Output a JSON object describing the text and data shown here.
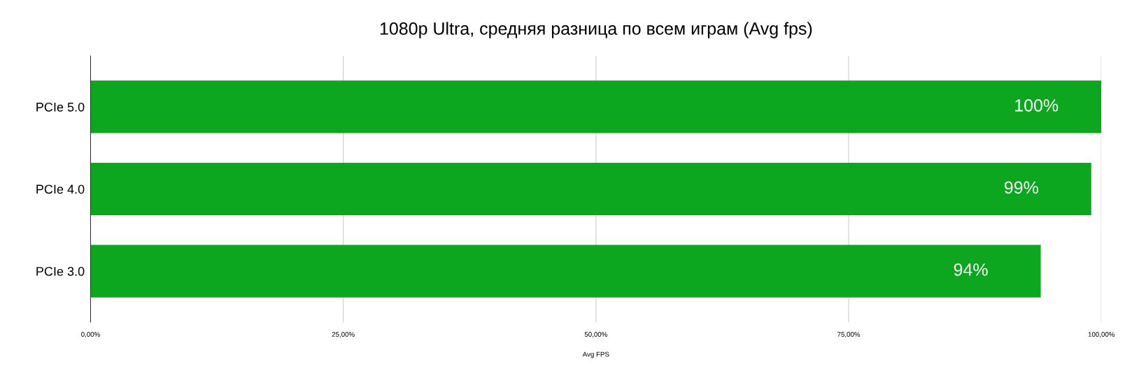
{
  "chart_data": {
    "type": "bar",
    "orientation": "horizontal",
    "title": "1080p Ultra, средняя разница по всем играм (Avg fps)",
    "xlabel": "Avg FPS",
    "categories": [
      "PCIe 5.0",
      "PCIe 4.0",
      "PCIe 3.0"
    ],
    "values": [
      100,
      99,
      94
    ],
    "value_labels": [
      "100%",
      "99%",
      "94%"
    ],
    "color": "#0ca61f",
    "xlim": [
      0,
      100
    ],
    "xticks": [
      {
        "value": 0,
        "label": "0,00%"
      },
      {
        "value": 25,
        "label": "25,00%"
      },
      {
        "value": 50,
        "label": "50,00%"
      },
      {
        "value": 75,
        "label": "75,00%"
      },
      {
        "value": 100,
        "label": "100,00%"
      }
    ],
    "grid": "x"
  }
}
